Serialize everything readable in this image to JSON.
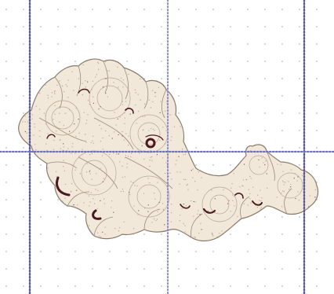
{
  "canvas": {
    "background_color": "#ffffff",
    "grid_dot_color": "#b9b9c8",
    "guide_line_color": "#6f6fb8",
    "guide_line_dark_color": "#4a4a7a"
  },
  "design": {
    "icon": "embroidery-design-icon",
    "fill_color": "#f2e8da",
    "outline_color": "#8a7a6a",
    "stitch_color": "#b8a896",
    "accent_color": "#4a1820",
    "show_grid": true,
    "show_guides": true
  }
}
